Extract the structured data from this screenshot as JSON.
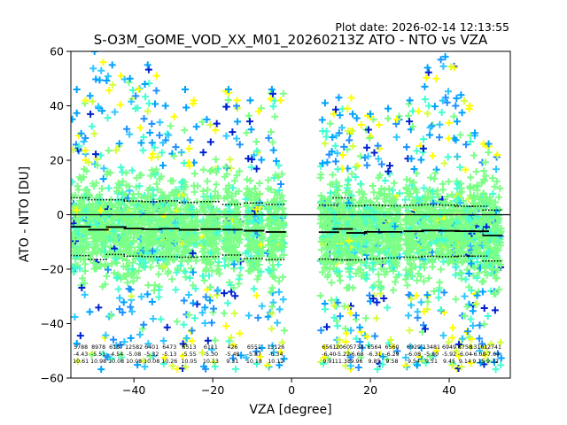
{
  "chart_data": {
    "type": "scatter",
    "plot_date": "Plot date: 2026-02-14 12:13:55",
    "title": "S-O3M_GOME_VOD_XX_M01_20260213Z ATO - NTO vs VZA",
    "xlabel": "VZA [degree]",
    "ylabel": "ATO - NTO [DU]",
    "xlim": [
      -56,
      55.5
    ],
    "ylim": [
      -60,
      60
    ],
    "xticks": [
      -40,
      -20,
      0,
      20,
      40
    ],
    "yticks": [
      -60,
      -40,
      -20,
      0,
      20,
      40,
      60
    ],
    "xtick_labels": [
      "−40",
      "−20",
      "0",
      "20",
      "40"
    ],
    "ytick_labels": [
      "−60",
      "−40",
      "−20",
      "0",
      "20",
      "40",
      "60"
    ],
    "zero_line": 0,
    "marker_colors": [
      "#00a2ff",
      "#1e90ff",
      "#2ec7ff",
      "#43ffd0",
      "#7cff86",
      "#d4ff3a",
      "#ffff00",
      "#0020d0"
    ],
    "bins": [
      {
        "vza": -53.5,
        "count": "5788",
        "mean": "-4.43",
        "std": "10.61",
        "upper": 6.2,
        "lower": -15.0,
        "ymin": -55,
        "ymax": 46
      },
      {
        "vza": -49.0,
        "count": "8978",
        "mean": "-5.51",
        "std": "10.98",
        "upper": 5.5,
        "lower": -16.5,
        "ymin": -57,
        "ymax": 60
      },
      {
        "vza": -44.5,
        "count": "6187",
        "mean": "-4.54",
        "std": "10.08",
        "upper": 5.5,
        "lower": -14.6,
        "ymin": -57,
        "ymax": 55
      },
      {
        "vza": -40.0,
        "count": "12582",
        "mean": "-5.08",
        "std": "10.08",
        "upper": 5.0,
        "lower": -15.2,
        "ymin": -57,
        "ymax": 50
      },
      {
        "vza": -35.5,
        "count": "6401",
        "mean": "-5.32",
        "std": "10.08",
        "upper": 4.8,
        "lower": -15.4,
        "ymin": -57,
        "ymax": 55
      },
      {
        "vza": -31.0,
        "count": "6473",
        "mean": "-5.13",
        "std": "10.26",
        "upper": 5.1,
        "lower": -15.4,
        "ymin": -57,
        "ymax": 40
      },
      {
        "vza": -26.0,
        "count": "6513",
        "mean": "-5.55",
        "std": "10.05",
        "upper": 4.5,
        "lower": -15.6,
        "ymin": -57,
        "ymax": 46
      },
      {
        "vza": -20.5,
        "count": "6111",
        "mean": "-5.30",
        "std": "10.13",
        "upper": 4.8,
        "lower": -15.4,
        "ymin": -57,
        "ymax": 35
      },
      {
        "vza": -15.0,
        "count": "426",
        "mean": "-5.48",
        "std": "9.31",
        "upper": 3.8,
        "lower": -14.8,
        "ymin": -57,
        "ymax": 46
      },
      {
        "vza": -9.5,
        "count": "6551",
        "mean": "-5.87",
        "std": "10.18",
        "upper": 4.3,
        "lower": -16.1,
        "ymin": -57,
        "ymax": 42
      },
      {
        "vza": -4.0,
        "count": "13126",
        "mean": "-6.34",
        "std": "10.12",
        "upper": 3.8,
        "lower": -16.5,
        "ymin": -57,
        "ymax": 46
      },
      {
        "vza": 9.5,
        "count": "6561",
        "mean": "-6.40",
        "std": "9.91",
        "upper": 3.5,
        "lower": -16.3,
        "ymin": -57,
        "ymax": 41
      },
      {
        "vza": 13.0,
        "count": "2060",
        "mean": "-5.22",
        "std": "11.38",
        "upper": 6.2,
        "lower": -16.6,
        "ymin": -57,
        "ymax": 43
      },
      {
        "vza": 16.5,
        "count": "5738",
        "mean": "-6.68",
        "std": "9.96",
        "upper": 3.3,
        "lower": -16.6,
        "ymin": -57,
        "ymax": 37
      },
      {
        "vza": 21.0,
        "count": "6564",
        "mean": "-6.31",
        "std": "9.85",
        "upper": 3.5,
        "lower": -16.2,
        "ymin": -57,
        "ymax": 37
      },
      {
        "vza": 25.5,
        "count": "6560",
        "mean": "-6.29",
        "std": "9.58",
        "upper": 3.3,
        "lower": -15.9,
        "ymin": -57,
        "ymax": 39
      },
      {
        "vza": 31.0,
        "count": "6929",
        "mean": "-6.08",
        "std": "9.54",
        "upper": 3.5,
        "lower": -15.6,
        "ymin": -57,
        "ymax": 42
      },
      {
        "vza": 35.5,
        "count": "13481",
        "mean": "-5.80",
        "std": "9.51",
        "upper": 3.7,
        "lower": -15.3,
        "ymin": -57,
        "ymax": 54
      },
      {
        "vza": 40.0,
        "count": "6949",
        "mean": "-5.92",
        "std": "9.45",
        "upper": 3.5,
        "lower": -15.4,
        "ymin": -57,
        "ymax": 58
      },
      {
        "vza": 44.0,
        "count": "8758",
        "mean": "-6.04",
        "std": "9.14",
        "upper": 3.1,
        "lower": -15.2,
        "ymin": -57,
        "ymax": 44
      },
      {
        "vza": 47.5,
        "count": "13101",
        "mean": "-6.08",
        "std": "9.15",
        "upper": 3.1,
        "lower": -15.2,
        "ymin": -57,
        "ymax": 30
      },
      {
        "vza": 51.0,
        "count": "12741",
        "mean": "-7.64",
        "std": "9.32",
        "upper": 1.7,
        "lower": -17.0,
        "ymin": -57,
        "ymax": 26
      }
    ]
  }
}
